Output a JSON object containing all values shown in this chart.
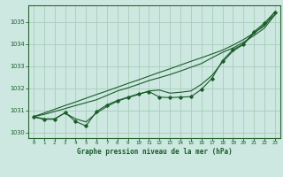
{
  "background_color": "#cce8e0",
  "grid_color": "#aaccbb",
  "line_color": "#1a5c2a",
  "border_color": "#2a6632",
  "title": "Graphe pression niveau de la mer (hPa)",
  "xlim": [
    -0.5,
    23.5
  ],
  "ylim": [
    1029.75,
    1035.75
  ],
  "yticks": [
    1030,
    1031,
    1032,
    1033,
    1034,
    1035
  ],
  "xticks": [
    0,
    1,
    2,
    3,
    4,
    5,
    6,
    7,
    8,
    9,
    10,
    11,
    12,
    13,
    14,
    15,
    16,
    17,
    18,
    19,
    20,
    21,
    22,
    23
  ],
  "xtick_labels": [
    "0",
    "1",
    "2",
    "3",
    "4",
    "5",
    "6",
    "7",
    "8",
    "9",
    "10",
    "11",
    "12",
    "13",
    "14",
    "15",
    "16",
    "17",
    "18",
    "19",
    "20",
    "21",
    "22",
    "23"
  ],
  "hours": [
    0,
    1,
    2,
    3,
    4,
    5,
    6,
    7,
    8,
    9,
    10,
    11,
    12,
    13,
    14,
    15,
    16,
    17,
    18,
    19,
    20,
    21,
    22,
    23
  ],
  "pressure_main": [
    1030.7,
    1030.6,
    1030.6,
    1030.9,
    1030.5,
    1030.3,
    1030.95,
    1031.25,
    1031.45,
    1031.6,
    1031.75,
    1031.85,
    1031.6,
    1031.58,
    1031.6,
    1031.62,
    1031.95,
    1032.45,
    1033.25,
    1033.75,
    1034.0,
    1034.55,
    1034.95,
    1035.45
  ],
  "pressure_smooth": [
    1030.72,
    1030.62,
    1030.62,
    1030.88,
    1030.62,
    1030.48,
    1030.88,
    1031.18,
    1031.42,
    1031.58,
    1031.72,
    1031.88,
    1031.92,
    1031.78,
    1031.82,
    1031.88,
    1032.18,
    1032.58,
    1033.18,
    1033.68,
    1033.98,
    1034.48,
    1034.88,
    1035.32
  ],
  "pressure_trend1": [
    1030.72,
    1030.88,
    1031.05,
    1031.22,
    1031.38,
    1031.55,
    1031.72,
    1031.88,
    1032.05,
    1032.22,
    1032.38,
    1032.55,
    1032.72,
    1032.88,
    1033.05,
    1033.22,
    1033.38,
    1033.55,
    1033.72,
    1033.95,
    1034.2,
    1034.5,
    1034.82,
    1035.45
  ],
  "pressure_trend2": [
    1030.72,
    1030.82,
    1030.95,
    1031.08,
    1031.22,
    1031.35,
    1031.48,
    1031.68,
    1031.88,
    1032.02,
    1032.18,
    1032.35,
    1032.48,
    1032.62,
    1032.78,
    1032.95,
    1033.12,
    1033.38,
    1033.62,
    1033.82,
    1034.08,
    1034.38,
    1034.72,
    1035.32
  ]
}
